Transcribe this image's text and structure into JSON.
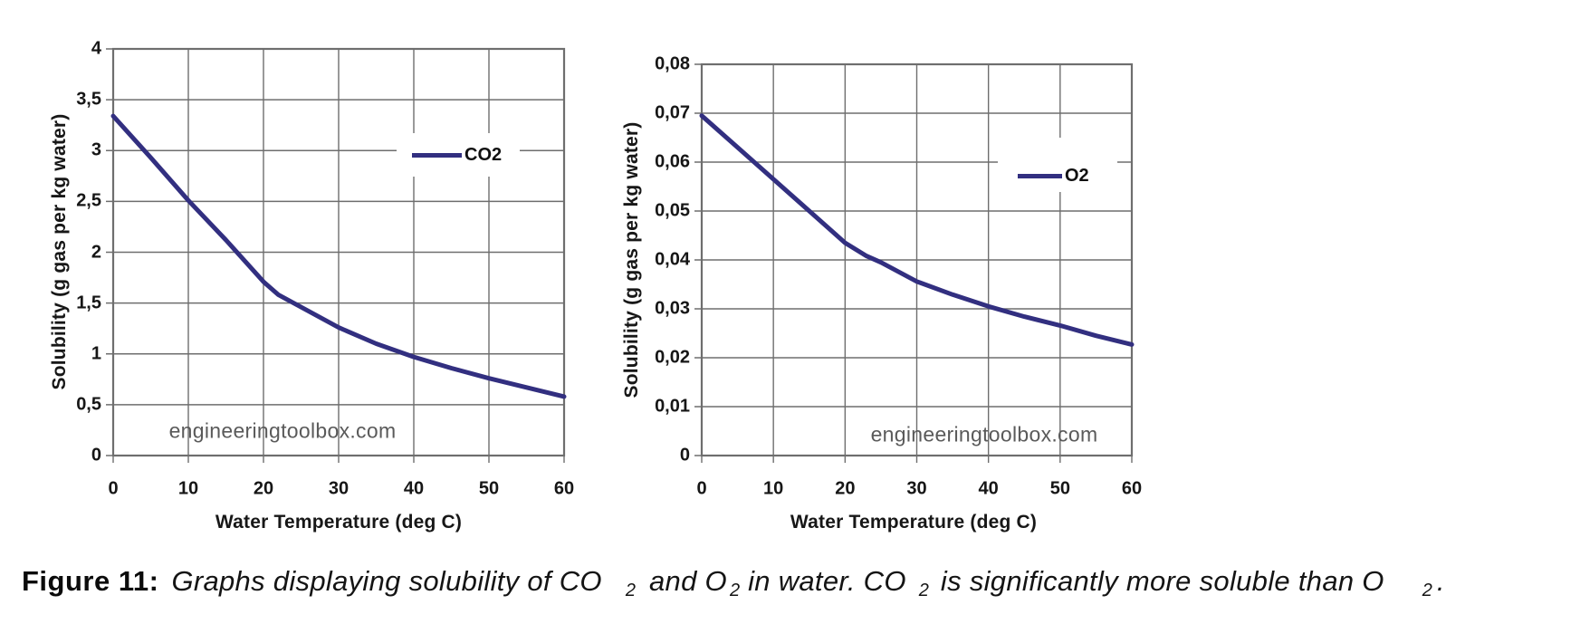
{
  "watermark": "engineeringtoolbox.com",
  "chart_data": [
    {
      "type": "line",
      "title": "",
      "xlabel": "Water Temperature (deg C)",
      "ylabel": "Solubility (g gas per kg water)",
      "xlim": [
        0,
        60
      ],
      "ylim": [
        0,
        4
      ],
      "grid": true,
      "legend": {
        "label": "CO2",
        "position": "upper-right"
      },
      "line_color": "#322f80",
      "watermark": "engineeringtoolbox.com",
      "x_ticks": [
        0,
        10,
        20,
        30,
        40,
        50,
        60
      ],
      "x_tick_labels": [
        "0",
        "10",
        "20",
        "30",
        "40",
        "50",
        "60"
      ],
      "y_ticks": [
        0,
        0.5,
        1,
        1.5,
        2,
        2.5,
        3,
        3.5,
        4
      ],
      "y_tick_labels": [
        "0",
        "0,5",
        "1",
        "1,5",
        "2",
        "2,5",
        "3",
        "3,5",
        "4"
      ],
      "series": [
        {
          "name": "CO2",
          "x": [
            0,
            5,
            10,
            15,
            20,
            22,
            25,
            30,
            35,
            40,
            45,
            50,
            55,
            60
          ],
          "y": [
            3.34,
            2.93,
            2.51,
            2.12,
            1.71,
            1.58,
            1.46,
            1.26,
            1.1,
            0.97,
            0.86,
            0.76,
            0.67,
            0.58
          ]
        }
      ]
    },
    {
      "type": "line",
      "title": "",
      "xlabel": "Water Temperature (deg C)",
      "ylabel": "Solubility (g gas per kg water)",
      "xlim": [
        0,
        60
      ],
      "ylim": [
        0,
        0.08
      ],
      "grid": true,
      "legend": {
        "label": "O2",
        "position": "upper-right"
      },
      "line_color": "#322f80",
      "watermark": "engineeringtoolbox.com",
      "x_ticks": [
        0,
        10,
        20,
        30,
        40,
        50,
        60
      ],
      "x_tick_labels": [
        "0",
        "10",
        "20",
        "30",
        "40",
        "50",
        "60"
      ],
      "y_ticks": [
        0,
        0.01,
        0.02,
        0.03,
        0.04,
        0.05,
        0.06,
        0.07,
        0.08
      ],
      "y_tick_labels": [
        "0",
        "0,01",
        "0,02",
        "0,03",
        "0,04",
        "0,05",
        "0,06",
        "0,07",
        "0,08"
      ],
      "series": [
        {
          "name": "O2",
          "x": [
            0,
            5,
            10,
            15,
            20,
            23,
            25,
            30,
            35,
            40,
            45,
            50,
            55,
            60
          ],
          "y": [
            0.0695,
            0.063,
            0.0565,
            0.05,
            0.0435,
            0.0408,
            0.0395,
            0.0356,
            0.0329,
            0.0305,
            0.0284,
            0.0266,
            0.0245,
            0.0227
          ]
        }
      ]
    }
  ],
  "caption": {
    "label": "Figure 11:",
    "t1": "Graphs displaying solubility of CO",
    "s1": "2",
    "t2": "and O",
    "s2": "2",
    "t3": "in water. CO",
    "s3": "2",
    "t4": "is significantly more soluble than O",
    "s4": "2",
    "t5": "."
  }
}
